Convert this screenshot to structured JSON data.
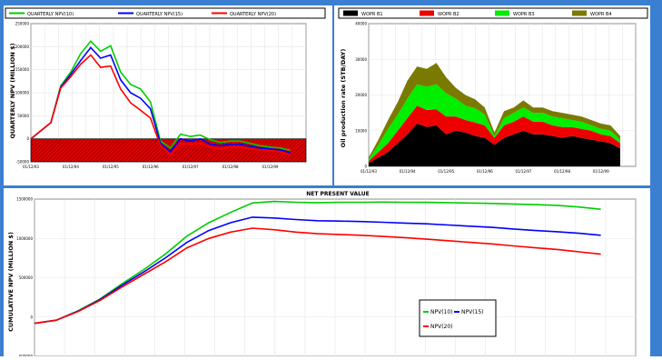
{
  "panels": {
    "quarterly_npv": {
      "chart_data": {
        "type": "line",
        "ylabel": "QUARTERLY NPV (MILLION $)",
        "x_ticks": [
          "01/12/93",
          "01/12/94",
          "01/12/95",
          "01/12/96",
          "01/12/97",
          "01/12/98",
          "01/12/99"
        ],
        "y_ticks": [
          "250000",
          "200000",
          "150000",
          "100000",
          "50000",
          "0",
          "-50000"
        ],
        "ylim": [
          -50000,
          250000
        ],
        "x": [
          "1993-01",
          "1993-07",
          "1993-10",
          "1994-01",
          "1994-04",
          "1994-07",
          "1994-10",
          "1995-01",
          "1995-04",
          "1995-07",
          "1995-10",
          "1996-01",
          "1996-04",
          "1996-07",
          "1996-10",
          "1997-01",
          "1997-04",
          "1997-07",
          "1997-10",
          "1998-01",
          "1998-04",
          "1998-07",
          "1998-10",
          "1999-01",
          "1999-04",
          "1999-07"
        ],
        "series": [
          {
            "name": "QUARTERLY NPV(10)",
            "color": "#00cc00",
            "values": [
              0,
              35000,
              115000,
              145000,
              185000,
              212000,
              190000,
              202000,
              145000,
              118000,
              108000,
              80000,
              -5000,
              -20000,
              10000,
              5000,
              8000,
              -2000,
              -8000,
              -5000,
              -5000,
              -10000,
              -15000,
              -18000,
              -20000,
              -25000
            ]
          },
          {
            "name": "QUARTERLY NPV(15)",
            "color": "#0000ff",
            "values": [
              0,
              35000,
              112000,
              140000,
              170000,
              198000,
              175000,
              182000,
              128000,
              100000,
              88000,
              65000,
              -10000,
              -28000,
              0,
              -5000,
              0,
              -12000,
              -15000,
              -12000,
              -12000,
              -16000,
              -20000,
              -22000,
              -24000,
              -30000
            ]
          },
          {
            "name": "QUARTERLY NPV(20)",
            "color": "#ff0000",
            "values": [
              0,
              35000,
              110000,
              135000,
              162000,
              182000,
              155000,
              158000,
              108000,
              78000,
              62000,
              45000,
              -15000,
              -35000,
              -10000,
              -12000,
              -10000,
              -18000,
              -22000,
              -18000,
              -18000,
              -22000,
              -24000,
              -26000,
              -28000,
              -35000
            ]
          }
        ]
      }
    },
    "oil_rate": {
      "chart_data": {
        "type": "area",
        "ylabel": "Oil production rate (STB/DAY)",
        "x_ticks": [
          "01/12/93",
          "01/12/94",
          "01/12/95",
          "01/12/96",
          "01/12/97",
          "01/12/98",
          "01/12/99"
        ],
        "y_ticks": [
          "40000",
          "30000",
          "20000",
          "10000",
          "0"
        ],
        "ylim": [
          0,
          40000
        ],
        "x": [
          "1993-01",
          "1993-04",
          "1993-07",
          "1993-10",
          "1994-01",
          "1994-04",
          "1994-07",
          "1994-10",
          "1995-01",
          "1995-04",
          "1995-07",
          "1995-10",
          "1996-01",
          "1996-04",
          "1996-07",
          "1996-10",
          "1997-01",
          "1997-04",
          "1997-07",
          "1997-10",
          "1998-01",
          "1998-04",
          "1998-07",
          "1998-10",
          "1999-01",
          "1999-04",
          "1999-07"
        ],
        "series": [
          {
            "name": "WOPR B1",
            "color": "#000000",
            "values": [
              1000,
              2500,
              4000,
              6500,
              9000,
              12000,
              11000,
              11500,
              9000,
              10000,
              9500,
              8500,
              8000,
              6000,
              8000,
              9000,
              10000,
              9000,
              9000,
              8500,
              8000,
              8500,
              8000,
              7500,
              7000,
              6500,
              5000
            ]
          },
          {
            "name": "WOPR B2",
            "color": "#ee0000",
            "values": [
              500,
              1500,
              2500,
              3500,
              4500,
              5000,
              4800,
              4500,
              5000,
              4000,
              3500,
              3800,
              3500,
              2000,
              3500,
              3500,
              4000,
              3500,
              3500,
              3000,
              3000,
              2500,
              2500,
              2500,
              2000,
              2000,
              1500
            ]
          },
          {
            "name": "WOPR B3",
            "color": "#00ee00",
            "values": [
              500,
              2000,
              4000,
              4500,
              5500,
              6000,
              6500,
              7000,
              6500,
              5000,
              4000,
              4000,
              3000,
              500,
              2000,
              2500,
              2500,
              2500,
              2500,
              2500,
              2500,
              2000,
              2000,
              1500,
              1500,
              1500,
              1000
            ]
          },
          {
            "name": "WOPR B4",
            "color": "#7a7a00",
            "values": [
              500,
              1500,
              2500,
              3500,
              5000,
              5000,
              5000,
              6000,
              4500,
              3000,
              3000,
              2500,
              2000,
              1000,
              2000,
              1500,
              2000,
              1500,
              1500,
              1500,
              1500,
              1500,
              1500,
              1500,
              1500,
              1500,
              1000
            ]
          }
        ]
      }
    },
    "cumulative_npv": {
      "chart_data": {
        "type": "line",
        "title": "NET PRESENT VALUE",
        "ylabel": "CUMULATIVE NPV (MILLION $)",
        "y_ticks": [
          "1500000",
          "1000000",
          "500000",
          "0",
          "-500000"
        ],
        "ylim": [
          -500000,
          1500000
        ],
        "x": [
          "1993-01",
          "1993-04",
          "1993-07",
          "1993-10",
          "1994-01",
          "1994-04",
          "1994-07",
          "1994-10",
          "1995-01",
          "1995-04",
          "1995-07",
          "1995-10",
          "1996-01",
          "1996-04",
          "1996-07",
          "1996-10",
          "1997-01",
          "1997-04",
          "1997-07",
          "1997-10",
          "1998-01",
          "1998-04",
          "1998-07",
          "1998-10",
          "1999-01",
          "1999-04",
          "1999-07"
        ],
        "series": [
          {
            "name": "NPV(10)",
            "color": "#00cc00",
            "values": [
              -80000,
              -40000,
              80000,
              230000,
              420000,
              600000,
              800000,
              1030000,
              1200000,
              1330000,
              1450000,
              1470000,
              1460000,
              1455000,
              1460000,
              1460000,
              1462000,
              1460000,
              1458000,
              1455000,
              1450000,
              1445000,
              1438000,
              1430000,
              1420000,
              1400000,
              1370000
            ]
          },
          {
            "name": "NPV(15)",
            "color": "#0000ff",
            "values": [
              -80000,
              -40000,
              75000,
              220000,
              400000,
              570000,
              750000,
              950000,
              1100000,
              1200000,
              1270000,
              1260000,
              1240000,
              1225000,
              1220000,
              1215000,
              1205000,
              1195000,
              1185000,
              1170000,
              1155000,
              1140000,
              1120000,
              1100000,
              1085000,
              1065000,
              1040000
            ]
          },
          {
            "name": "NPV(20)",
            "color": "#ff0000",
            "values": [
              -80000,
              -40000,
              70000,
              210000,
              380000,
              540000,
              700000,
              880000,
              1000000,
              1080000,
              1130000,
              1110000,
              1080000,
              1060000,
              1050000,
              1040000,
              1025000,
              1010000,
              990000,
              970000,
              950000,
              930000,
              905000,
              880000,
              860000,
              830000,
              800000
            ]
          }
        ]
      }
    }
  }
}
